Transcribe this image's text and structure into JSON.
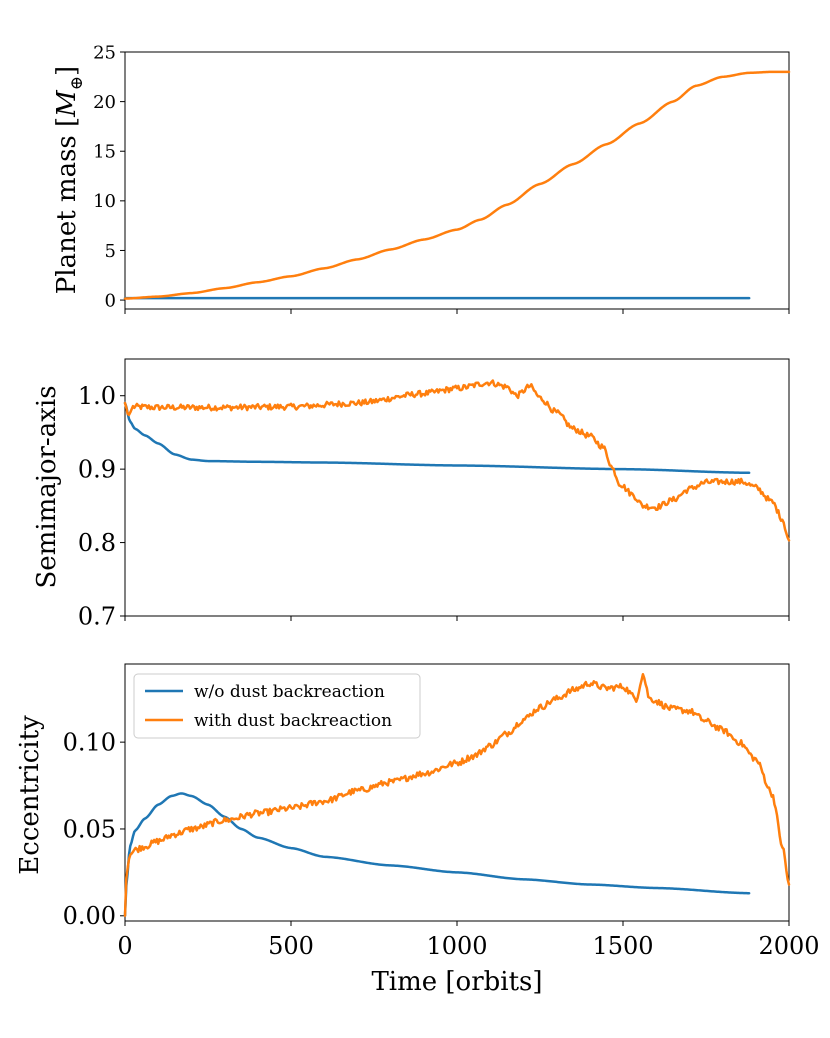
{
  "chart_data": {
    "type": "line",
    "series_colors": {
      "without": "#1f77b4",
      "with": "#ff7f0e"
    },
    "xlabel": "Time [orbits]",
    "xlim": [
      0,
      2000
    ],
    "xticks": [
      0,
      500,
      1000,
      1500,
      2000
    ],
    "xtick_labels": [
      "0",
      "500",
      "1000",
      "1500",
      "2000"
    ],
    "legend": {
      "placement": "upper-left (bottom panel)",
      "entries": [
        "w/o dust backreaction",
        "with dust backreaction"
      ]
    },
    "panels": [
      {
        "name": "mass",
        "ylabel_prefix": "Planet mass [",
        "ylabel_symbol": "M",
        "ylabel_subscript": "⊕",
        "ylabel_suffix": "]",
        "ylim": [
          -0.9,
          25
        ],
        "yticks": [
          0,
          5,
          10,
          15,
          20,
          25
        ],
        "ytick_labels": [
          "0",
          "5",
          "10",
          "15",
          "20",
          "25"
        ],
        "series": [
          {
            "name": "w/o dust backreaction",
            "noise": 0,
            "points": [
              [
                0,
                0.2
              ],
              [
                1880,
                0.2
              ]
            ]
          },
          {
            "name": "with dust backreaction",
            "noise": 0,
            "points": [
              [
                0,
                0.15
              ],
              [
                100,
                0.35
              ],
              [
                200,
                0.7
              ],
              [
                300,
                1.2
              ],
              [
                400,
                1.8
              ],
              [
                500,
                2.4
              ],
              [
                600,
                3.2
              ],
              [
                700,
                4.1
              ],
              [
                800,
                5.1
              ],
              [
                900,
                6.1
              ],
              [
                1000,
                7.1
              ],
              [
                1070,
                8.1
              ],
              [
                1150,
                9.6
              ],
              [
                1250,
                11.7
              ],
              [
                1350,
                13.7
              ],
              [
                1450,
                15.7
              ],
              [
                1550,
                17.8
              ],
              [
                1650,
                20.0
              ],
              [
                1720,
                21.6
              ],
              [
                1800,
                22.5
              ],
              [
                1880,
                22.9
              ],
              [
                1950,
                23.0
              ],
              [
                2000,
                23.0
              ]
            ]
          }
        ]
      },
      {
        "name": "semimajor",
        "ylabel": "Semimajor-axis",
        "ylim": [
          0.7,
          1.05
        ],
        "yticks": [
          0.7,
          0.8,
          0.9,
          1.0
        ],
        "ytick_labels": [
          "0.7",
          "0.8",
          "0.9",
          "1.0"
        ],
        "series": [
          {
            "name": "w/o dust backreaction",
            "noise": 0,
            "points": [
              [
                0,
                0.99
              ],
              [
                15,
                0.965
              ],
              [
                30,
                0.955
              ],
              [
                60,
                0.946
              ],
              [
                100,
                0.935
              ],
              [
                150,
                0.92
              ],
              [
                200,
                0.913
              ],
              [
                250,
                0.911
              ],
              [
                400,
                0.91
              ],
              [
                600,
                0.909
              ],
              [
                1000,
                0.905
              ],
              [
                1500,
                0.9
              ],
              [
                1880,
                0.895
              ]
            ]
          },
          {
            "name": "with dust backreaction",
            "noise": 0.004,
            "points": [
              [
                0,
                0.99
              ],
              [
                10,
                0.973
              ],
              [
                25,
                0.985
              ],
              [
                100,
                0.984
              ],
              [
                300,
                0.984
              ],
              [
                500,
                0.985
              ],
              [
                700,
                0.99
              ],
              [
                900,
                1.003
              ],
              [
                1000,
                1.01
              ],
              [
                1100,
                1.018
              ],
              [
                1150,
                1.012
              ],
              [
                1180,
                1.0
              ],
              [
                1220,
                1.013
              ],
              [
                1250,
                0.997
              ],
              [
                1300,
                0.977
              ],
              [
                1350,
                0.955
              ],
              [
                1400,
                0.945
              ],
              [
                1440,
                0.93
              ],
              [
                1470,
                0.9
              ],
              [
                1490,
                0.88
              ],
              [
                1530,
                0.865
              ],
              [
                1560,
                0.85
              ],
              [
                1600,
                0.848
              ],
              [
                1650,
                0.858
              ],
              [
                1700,
                0.873
              ],
              [
                1750,
                0.882
              ],
              [
                1800,
                0.883
              ],
              [
                1860,
                0.883
              ],
              [
                1900,
                0.875
              ],
              [
                1950,
                0.855
              ],
              [
                1980,
                0.832
              ],
              [
                2000,
                0.803
              ]
            ]
          }
        ]
      },
      {
        "name": "eccentricity",
        "ylabel": "Eccentricity",
        "ylim": [
          -0.003,
          0.145
        ],
        "yticks": [
          0.0,
          0.05,
          0.1
        ],
        "ytick_labels": [
          "0.00",
          "0.05",
          "0.10"
        ],
        "series": [
          {
            "name": "w/o dust backreaction",
            "noise": 0,
            "points": [
              [
                0,
                0
              ],
              [
                5,
                0.02
              ],
              [
                15,
                0.04
              ],
              [
                30,
                0.049
              ],
              [
                60,
                0.056
              ],
              [
                100,
                0.064
              ],
              [
                140,
                0.069
              ],
              [
                170,
                0.0705
              ],
              [
                200,
                0.069
              ],
              [
                250,
                0.064
              ],
              [
                300,
                0.057
              ],
              [
                350,
                0.05
              ],
              [
                400,
                0.045
              ],
              [
                500,
                0.039
              ],
              [
                600,
                0.034
              ],
              [
                800,
                0.029
              ],
              [
                1000,
                0.025
              ],
              [
                1200,
                0.021
              ],
              [
                1400,
                0.018
              ],
              [
                1600,
                0.016
              ],
              [
                1880,
                0.013
              ]
            ]
          },
          {
            "name": "with dust backreaction",
            "noise": 0.0018,
            "points": [
              [
                0,
                0
              ],
              [
                5,
                0.025
              ],
              [
                15,
                0.035
              ],
              [
                30,
                0.038
              ],
              [
                60,
                0.04
              ],
              [
                100,
                0.043
              ],
              [
                150,
                0.047
              ],
              [
                200,
                0.05
              ],
              [
                300,
                0.055
              ],
              [
                400,
                0.059
              ],
              [
                500,
                0.062
              ],
              [
                600,
                0.066
              ],
              [
                700,
                0.072
              ],
              [
                800,
                0.077
              ],
              [
                900,
                0.082
              ],
              [
                1000,
                0.088
              ],
              [
                1050,
                0.092
              ],
              [
                1100,
                0.098
              ],
              [
                1150,
                0.105
              ],
              [
                1200,
                0.113
              ],
              [
                1250,
                0.12
              ],
              [
                1300,
                0.125
              ],
              [
                1350,
                0.13
              ],
              [
                1400,
                0.134
              ],
              [
                1450,
                0.131
              ],
              [
                1500,
                0.132
              ],
              [
                1540,
                0.125
              ],
              [
                1560,
                0.139
              ],
              [
                1580,
                0.125
              ],
              [
                1650,
                0.119
              ],
              [
                1700,
                0.118
              ],
              [
                1750,
                0.112
              ],
              [
                1800,
                0.107
              ],
              [
                1850,
                0.1
              ],
              [
                1900,
                0.09
              ],
              [
                1950,
                0.07
              ],
              [
                1980,
                0.04
              ],
              [
                2000,
                0.018
              ]
            ]
          }
        ]
      }
    ]
  }
}
